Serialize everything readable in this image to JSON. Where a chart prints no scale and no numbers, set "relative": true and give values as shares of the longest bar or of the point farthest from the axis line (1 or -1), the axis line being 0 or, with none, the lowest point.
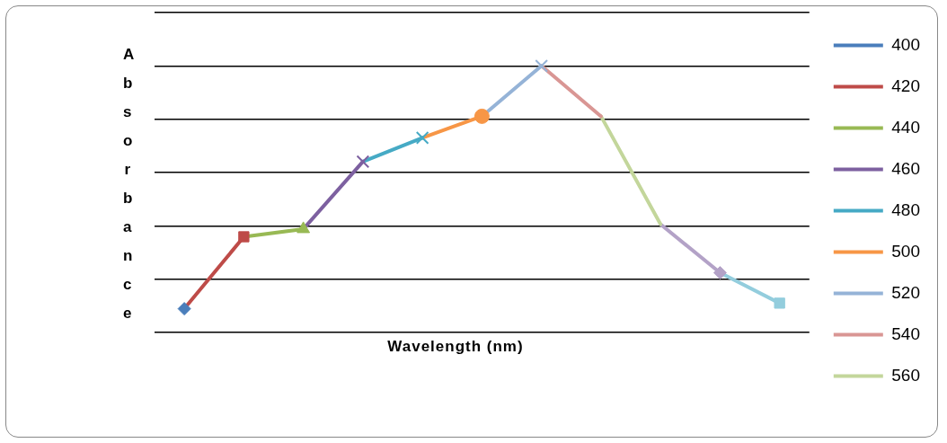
{
  "chart_data": {
    "type": "line",
    "xlabel": "Wavelength (nm)",
    "ylabel": "Absorbance",
    "relative": true,
    "grid": "y",
    "legend": "right",
    "line_style": "solid",
    "categories": [
      null,
      null,
      null,
      null,
      null,
      null,
      null,
      null,
      null,
      null,
      null
    ],
    "series": [
      {
        "name": "400",
        "color": "#4a7ebb",
        "marker": "diamond",
        "values": [
          0.089,
          null,
          null,
          null,
          null,
          null,
          null,
          null,
          null,
          null,
          null
        ]
      },
      {
        "name": "420",
        "color": "#be4b48",
        "marker": "square",
        "values": [
          0.089,
          0.359,
          null,
          null,
          null,
          null,
          null,
          null,
          null,
          null,
          null
        ]
      },
      {
        "name": "440",
        "color": "#98b954",
        "marker": "triangle",
        "values": [
          null,
          0.359,
          0.388,
          null,
          null,
          null,
          null,
          null,
          null,
          null,
          null
        ]
      },
      {
        "name": "460",
        "color": "#7d60a0",
        "marker": "cross",
        "values": [
          null,
          null,
          0.388,
          0.641,
          null,
          null,
          null,
          null,
          null,
          null,
          null
        ]
      },
      {
        "name": "480",
        "color": "#46aac5",
        "marker": "cross",
        "values": [
          null,
          null,
          null,
          0.641,
          0.73,
          null,
          null,
          null,
          null,
          null,
          null
        ]
      },
      {
        "name": "500",
        "color": "#f79646",
        "marker": "circle",
        "values": [
          null,
          null,
          null,
          null,
          0.73,
          0.811,
          null,
          null,
          null,
          null,
          null
        ]
      },
      {
        "name": "520",
        "color": "#95b3d7",
        "marker": "cross",
        "values": [
          null,
          null,
          null,
          null,
          null,
          0.811,
          1,
          null,
          null,
          null,
          null
        ]
      },
      {
        "name": "540",
        "color": "#d99694",
        "marker": "none",
        "values": [
          null,
          null,
          null,
          null,
          null,
          null,
          1,
          0.811,
          null,
          null,
          null
        ]
      },
      {
        "name": "560",
        "color": "#c3d69b",
        "marker": "none",
        "values": [
          null,
          null,
          null,
          null,
          null,
          null,
          null,
          0.811,
          0.406,
          null,
          null
        ]
      },
      {
        "color": "#b3a2c7",
        "marker": "diamond",
        "values": [
          null,
          null,
          null,
          null,
          null,
          null,
          null,
          null,
          0.406,
          0.224,
          null
        ]
      },
      {
        "color": "#93cddd",
        "marker": "square",
        "values": [
          null,
          null,
          null,
          null,
          null,
          null,
          null,
          null,
          null,
          0.224,
          0.11
        ]
      }
    ]
  }
}
